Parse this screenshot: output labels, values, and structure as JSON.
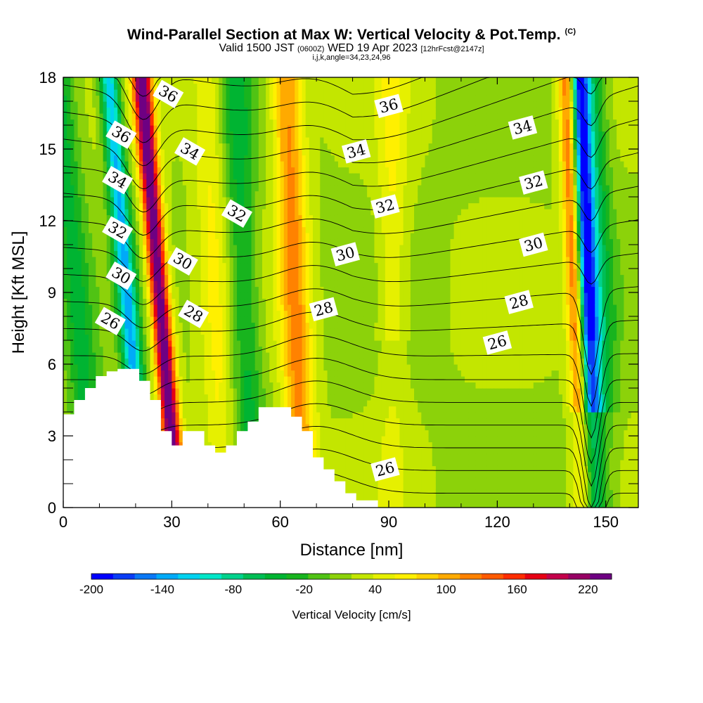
{
  "header": {
    "title": "Wind-Parallel Section at Max W: Vertical Velocity & Pot.Temp.",
    "title_mark": "(C)",
    "valid_prefix": "Valid 1500 JST",
    "valid_utc": "(0600Z)",
    "valid_date": "WED 19 Apr 2023",
    "forecast_tag": "[12hrFcst@2147z]",
    "indices": "i,j,k,angle=34,23,24,96"
  },
  "chart_data": {
    "type": "heatmap",
    "xlabel": "Distance [nm]",
    "ylabel": "Height [Kft MSL]",
    "xlim": [
      0,
      159
    ],
    "ylim": [
      0,
      18
    ],
    "x_ticks": [
      0,
      30,
      60,
      90,
      120,
      150
    ],
    "x_tick_labels": [
      "0",
      "30",
      "60",
      "90",
      "120",
      "150"
    ],
    "y_ticks": [
      0,
      3,
      6,
      9,
      12,
      15,
      18
    ],
    "y_tick_labels": [
      "0",
      "3",
      "6",
      "9",
      "12",
      "15",
      "18"
    ],
    "grid": false,
    "colorbar": {
      "title": "Vertical Velocity [cm/s]",
      "placement": "bottom",
      "range": [
        -200,
        240
      ],
      "tick_values": [
        -200,
        -140,
        -80,
        -20,
        40,
        100,
        160,
        220
      ],
      "tick_labels": [
        "-200",
        "-140",
        "-80",
        "-20",
        "40",
        "100",
        "160",
        "220"
      ],
      "colors": [
        "#0000ff",
        "#0a3cf5",
        "#0a78f5",
        "#00aaf8",
        "#00d2f0",
        "#00e6c8",
        "#00d28c",
        "#00be55",
        "#00b432",
        "#18b41e",
        "#50c314",
        "#8cd20a",
        "#c3e600",
        "#e6f000",
        "#fff000",
        "#ffd200",
        "#ffaa00",
        "#ff8200",
        "#ff5a00",
        "#ff2d00",
        "#e60014",
        "#c3004b",
        "#960064",
        "#6e0082"
      ]
    },
    "vertical_velocity_bands_cm_s": [
      {
        "x": 4,
        "peak": -60
      },
      {
        "x": 18,
        "peak": -150
      },
      {
        "x": 27,
        "peak": 230
      },
      {
        "x": 42,
        "peak": 40
      },
      {
        "x": 50,
        "peak": -60
      },
      {
        "x": 64,
        "peak": 100
      },
      {
        "x": 91,
        "peak": 40
      },
      {
        "x": 143,
        "peak": 140
      },
      {
        "x": 146,
        "peak": -200
      },
      {
        "x": 149,
        "peak": -80
      }
    ],
    "potential_temperature_contours_K": [
      {
        "label": "26",
        "x": 13,
        "y": 7.8
      },
      {
        "label": "26",
        "x": 89,
        "y": 1.6
      },
      {
        "label": "26",
        "x": 120,
        "y": 6.9
      },
      {
        "label": "28",
        "x": 36,
        "y": 8.1
      },
      {
        "label": "28",
        "x": 72,
        "y": 8.3
      },
      {
        "label": "28",
        "x": 126,
        "y": 8.6
      },
      {
        "label": "30",
        "x": 16,
        "y": 9.7
      },
      {
        "label": "30",
        "x": 33,
        "y": 10.3
      },
      {
        "label": "30",
        "x": 78,
        "y": 10.6
      },
      {
        "label": "30",
        "x": 130,
        "y": 11.0
      },
      {
        "label": "32",
        "x": 15,
        "y": 11.6
      },
      {
        "label": "32",
        "x": 48,
        "y": 12.3
      },
      {
        "label": "32",
        "x": 89,
        "y": 12.6
      },
      {
        "label": "32",
        "x": 130,
        "y": 13.6
      },
      {
        "label": "34",
        "x": 15,
        "y": 13.7
      },
      {
        "label": "34",
        "x": 35,
        "y": 14.9
      },
      {
        "label": "34",
        "x": 81,
        "y": 14.9
      },
      {
        "label": "34",
        "x": 127,
        "y": 15.9
      },
      {
        "label": "36",
        "x": 16,
        "y": 15.6
      },
      {
        "label": "36",
        "x": 29,
        "y": 17.3
      },
      {
        "label": "36",
        "x": 90,
        "y": 16.8
      }
    ],
    "terrain_top_kft": [
      [
        0,
        3.9
      ],
      [
        3,
        4.5
      ],
      [
        6,
        5.0
      ],
      [
        9,
        5.5
      ],
      [
        12,
        5.7
      ],
      [
        15,
        5.8
      ],
      [
        18,
        5.8
      ],
      [
        21,
        5.3
      ],
      [
        24,
        4.5
      ],
      [
        27,
        3.2
      ],
      [
        30,
        2.6
      ],
      [
        33,
        3.2
      ],
      [
        36,
        3.2
      ],
      [
        39,
        2.6
      ],
      [
        42,
        2.3
      ],
      [
        45,
        2.6
      ],
      [
        48,
        3.2
      ],
      [
        51,
        3.6
      ],
      [
        54,
        4.2
      ],
      [
        57,
        4.2
      ],
      [
        60,
        4.2
      ],
      [
        63,
        3.8
      ],
      [
        66,
        3.2
      ],
      [
        69,
        2.1
      ],
      [
        72,
        1.6
      ],
      [
        75,
        1.1
      ],
      [
        78,
        0.6
      ],
      [
        81,
        0.3
      ],
      [
        84,
        0.3
      ],
      [
        87,
        0
      ],
      [
        159,
        0
      ]
    ]
  }
}
